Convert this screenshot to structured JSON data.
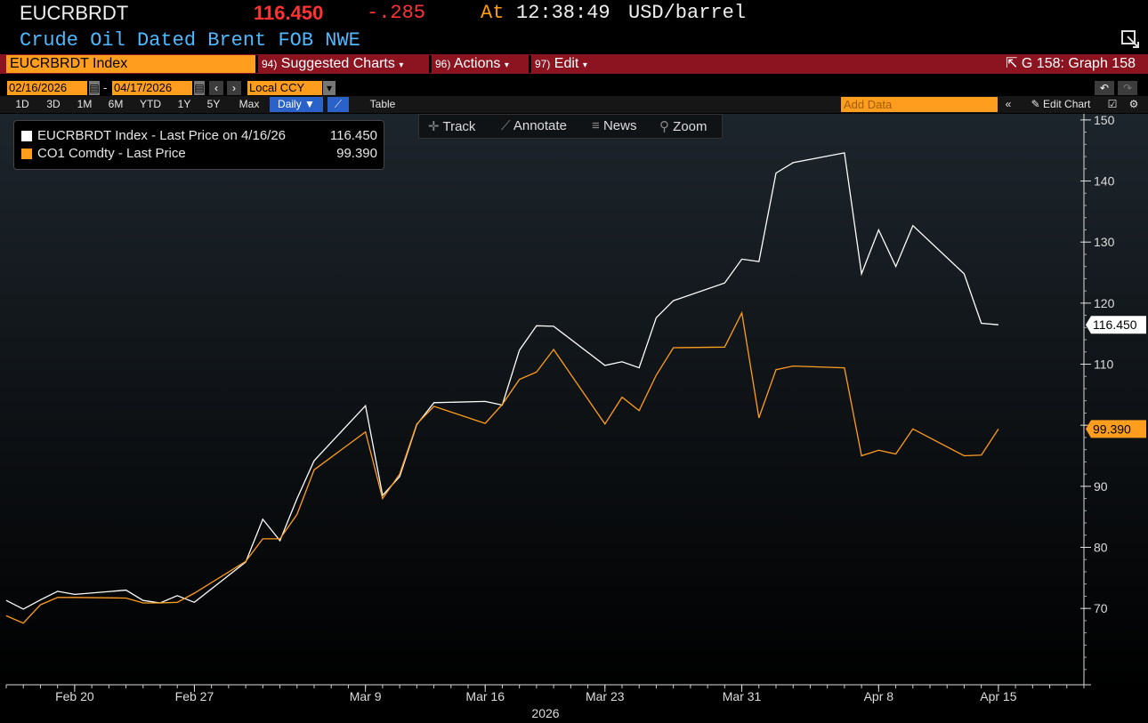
{
  "ticker": {
    "symbol": "EUCRBRDT",
    "price": "116.450",
    "change": "-.285",
    "at_label": "At",
    "time": "12:38:49",
    "unit": "USD/barrel",
    "description": "Crude Oil Dated Brent FOB NWE"
  },
  "menubar": {
    "security": "EUCRBRDT Index",
    "suggested_num": "94)",
    "suggested_label": "Suggested Charts",
    "actions_num": "96)",
    "actions_label": "Actions",
    "edit_num": "97)",
    "edit_label": "Edit",
    "graph_id": "G 158: Graph 158"
  },
  "daterange": {
    "start": "02/16/2026",
    "end": "04/17/2026",
    "currency": "Local CCY"
  },
  "periods": [
    "1D",
    "3D",
    "1M",
    "6M",
    "YTD",
    "1Y",
    "5Y",
    "Max"
  ],
  "frequency": "Daily",
  "table_label": "Table",
  "add_data_placeholder": "Add Data",
  "edit_chart_label": "Edit Chart",
  "tools": {
    "track": "Track",
    "annotate": "Annotate",
    "news": "News",
    "zoom": "Zoom"
  },
  "legend": [
    {
      "label": "EUCRBRDT Index - Last Price on 4/16/26",
      "value": "116.450",
      "color": "#ffffff"
    },
    {
      "label": "CO1 Comdty - Last Price",
      "value": "99.390",
      "color": "#ff9d1e"
    }
  ],
  "colors": {
    "accent": "#ff9d1e",
    "menubar": "#8b1420",
    "price_down": "#ff3333",
    "description": "#4fb8ff"
  },
  "chart_data": {
    "type": "line",
    "x_year_label": "2026",
    "x_ticks": [
      {
        "date": "2026-02-20",
        "label": "Feb 20"
      },
      {
        "date": "2026-02-27",
        "label": "Feb 27"
      },
      {
        "date": "2026-03-09",
        "label": "Mar 9"
      },
      {
        "date": "2026-03-16",
        "label": "Mar 16"
      },
      {
        "date": "2026-03-23",
        "label": "Mar 23"
      },
      {
        "date": "2026-03-31",
        "label": "Mar 31"
      },
      {
        "date": "2026-04-08",
        "label": "Apr 8"
      },
      {
        "date": "2026-04-15",
        "label": "Apr 15"
      }
    ],
    "y_ticks": [
      70,
      80,
      90,
      100,
      110,
      120,
      130,
      140,
      150
    ],
    "ylim": [
      57.5,
      151
    ],
    "xlim": [
      "2026-02-16",
      "2026-04-20"
    ],
    "grid": false,
    "series": [
      {
        "name": "EUCRBRDT Index - Last Price",
        "color": "#ffffff",
        "last_label": "116.450",
        "points": [
          [
            "2026-02-16",
            71.3
          ],
          [
            "2026-02-17",
            69.9
          ],
          [
            "2026-02-18",
            71.4
          ],
          [
            "2026-02-19",
            72.8
          ],
          [
            "2026-02-20",
            72.3
          ],
          [
            "2026-02-23",
            73.0
          ],
          [
            "2026-02-24",
            71.3
          ],
          [
            "2026-02-25",
            70.9
          ],
          [
            "2026-02-26",
            72.1
          ],
          [
            "2026-02-27",
            71.0
          ],
          [
            "2026-03-02",
            77.6
          ],
          [
            "2026-03-03",
            84.6
          ],
          [
            "2026-03-04",
            81.1
          ],
          [
            "2026-03-05",
            88.0
          ],
          [
            "2026-03-06",
            94.2
          ],
          [
            "2026-03-09",
            103.2
          ],
          [
            "2026-03-10",
            88.5
          ],
          [
            "2026-03-11",
            91.6
          ],
          [
            "2026-03-12",
            100.1
          ],
          [
            "2026-03-13",
            103.7
          ],
          [
            "2026-03-16",
            103.9
          ],
          [
            "2026-03-17",
            103.3
          ],
          [
            "2026-03-18",
            112.3
          ],
          [
            "2026-03-19",
            116.3
          ],
          [
            "2026-03-20",
            116.2
          ],
          [
            "2026-03-23",
            109.8
          ],
          [
            "2026-03-24",
            110.4
          ],
          [
            "2026-03-25",
            109.4
          ],
          [
            "2026-03-26",
            117.6
          ],
          [
            "2026-03-27",
            120.4
          ],
          [
            "2026-03-30",
            123.3
          ],
          [
            "2026-03-31",
            127.2
          ],
          [
            "2026-04-01",
            126.8
          ],
          [
            "2026-04-02",
            141.3
          ],
          [
            "2026-04-03",
            143.0
          ],
          [
            "2026-04-06",
            144.6
          ],
          [
            "2026-04-07",
            124.8
          ],
          [
            "2026-04-08",
            132.0
          ],
          [
            "2026-04-09",
            126.0
          ],
          [
            "2026-04-10",
            132.7
          ],
          [
            "2026-04-13",
            124.8
          ],
          [
            "2026-04-14",
            116.7
          ],
          [
            "2026-04-15",
            116.45
          ]
        ]
      },
      {
        "name": "CO1 Comdty - Last Price",
        "color": "#ff9d1e",
        "last_label": "99.390",
        "points": [
          [
            "2026-02-16",
            68.8
          ],
          [
            "2026-02-17",
            67.6
          ],
          [
            "2026-02-18",
            70.6
          ],
          [
            "2026-02-19",
            71.8
          ],
          [
            "2026-02-20",
            71.8
          ],
          [
            "2026-02-23",
            71.7
          ],
          [
            "2026-02-24",
            70.9
          ],
          [
            "2026-02-25",
            70.9
          ],
          [
            "2026-02-26",
            71.0
          ],
          [
            "2026-02-27",
            72.5
          ],
          [
            "2026-03-02",
            77.7
          ],
          [
            "2026-03-03",
            81.4
          ],
          [
            "2026-03-04",
            81.4
          ],
          [
            "2026-03-05",
            85.4
          ],
          [
            "2026-03-06",
            92.7
          ],
          [
            "2026-03-09",
            98.9
          ],
          [
            "2026-03-10",
            88.0
          ],
          [
            "2026-03-11",
            92.0
          ],
          [
            "2026-03-12",
            100.2
          ],
          [
            "2026-03-13",
            103.1
          ],
          [
            "2026-03-16",
            100.3
          ],
          [
            "2026-03-17",
            103.4
          ],
          [
            "2026-03-18",
            107.5
          ],
          [
            "2026-03-19",
            108.7
          ],
          [
            "2026-03-20",
            112.4
          ],
          [
            "2026-03-23",
            100.2
          ],
          [
            "2026-03-24",
            104.6
          ],
          [
            "2026-03-25",
            102.4
          ],
          [
            "2026-03-26",
            108.2
          ],
          [
            "2026-03-27",
            112.7
          ],
          [
            "2026-03-30",
            112.8
          ],
          [
            "2026-03-31",
            118.4
          ],
          [
            "2026-04-01",
            101.2
          ],
          [
            "2026-04-02",
            109.1
          ],
          [
            "2026-04-03",
            109.7
          ],
          [
            "2026-04-06",
            109.4
          ],
          [
            "2026-04-07",
            95.0
          ],
          [
            "2026-04-08",
            95.9
          ],
          [
            "2026-04-09",
            95.3
          ],
          [
            "2026-04-10",
            99.4
          ],
          [
            "2026-04-13",
            95.0
          ],
          [
            "2026-04-14",
            95.1
          ],
          [
            "2026-04-15",
            99.39
          ]
        ]
      }
    ]
  }
}
